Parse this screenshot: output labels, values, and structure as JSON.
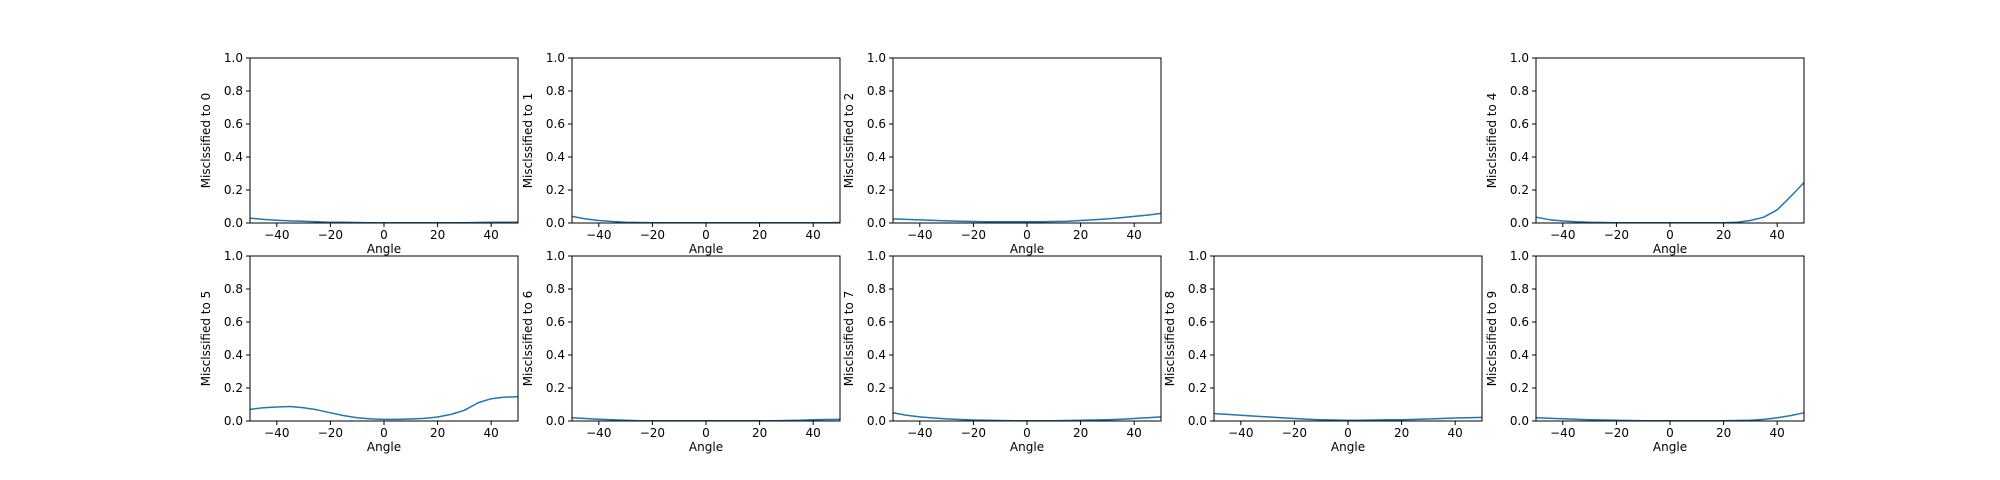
{
  "chart_data": [
    {
      "type": "line",
      "xlabel": "Angle",
      "ylabel": "Misclssified to 0",
      "xlim": [
        -50,
        50
      ],
      "ylim": [
        0,
        1
      ],
      "xticks": [
        -40,
        -20,
        0,
        20,
        40
      ],
      "yticks": [
        0.0,
        0.2,
        0.4,
        0.6,
        0.8,
        1.0
      ],
      "series": [
        {
          "x": [
            -50,
            -45,
            -40,
            -35,
            -30,
            -25,
            -20,
            -15,
            -10,
            -5,
            0,
            5,
            10,
            15,
            20,
            25,
            30,
            35,
            40,
            45,
            50
          ],
          "y": [
            0.03,
            0.022,
            0.017,
            0.013,
            0.01,
            0.007,
            0.005,
            0.004,
            0.003,
            0.002,
            0.002,
            0.002,
            0.002,
            0.002,
            0.002,
            0.002,
            0.002,
            0.003,
            0.004,
            0.004,
            0.005
          ]
        }
      ]
    },
    {
      "type": "line",
      "xlabel": "Angle",
      "ylabel": "Misclssified to 1",
      "xlim": [
        -50,
        50
      ],
      "ylim": [
        0,
        1
      ],
      "xticks": [
        -40,
        -20,
        0,
        20,
        40
      ],
      "yticks": [
        0.0,
        0.2,
        0.4,
        0.6,
        0.8,
        1.0
      ],
      "series": [
        {
          "x": [
            -50,
            -45,
            -40,
            -35,
            -30,
            -25,
            -20,
            -15,
            -10,
            -5,
            0,
            5,
            10,
            15,
            20,
            25,
            30,
            35,
            40,
            45,
            50
          ],
          "y": [
            0.04,
            0.025,
            0.015,
            0.009,
            0.005,
            0.003,
            0.002,
            0.001,
            0.001,
            0.001,
            0.001,
            0.001,
            0.001,
            0.001,
            0.001,
            0.001,
            0.001,
            0.001,
            0.002,
            0.002,
            0.003
          ]
        }
      ]
    },
    {
      "type": "line",
      "xlabel": "Angle",
      "ylabel": "Misclssified to 2",
      "xlim": [
        -50,
        50
      ],
      "ylim": [
        0,
        1
      ],
      "xticks": [
        -40,
        -20,
        0,
        20,
        40
      ],
      "yticks": [
        0.0,
        0.2,
        0.4,
        0.6,
        0.8,
        1.0
      ],
      "series": [
        {
          "x": [
            -50,
            -45,
            -40,
            -35,
            -30,
            -25,
            -20,
            -15,
            -10,
            -5,
            0,
            5,
            10,
            15,
            20,
            25,
            30,
            35,
            40,
            45,
            50
          ],
          "y": [
            0.025,
            0.022,
            0.019,
            0.016,
            0.013,
            0.011,
            0.009,
            0.008,
            0.008,
            0.007,
            0.007,
            0.008,
            0.009,
            0.011,
            0.015,
            0.02,
            0.025,
            0.032,
            0.04,
            0.048,
            0.058
          ]
        }
      ]
    },
    {
      "type": "line",
      "xlabel": "Angle",
      "ylabel": "Misclssified to 4",
      "xlim": [
        -50,
        50
      ],
      "ylim": [
        0,
        1
      ],
      "xticks": [
        -40,
        -20,
        0,
        20,
        40
      ],
      "yticks": [
        0.0,
        0.2,
        0.4,
        0.6,
        0.8,
        1.0
      ],
      "series": [
        {
          "x": [
            -50,
            -45,
            -40,
            -35,
            -30,
            -25,
            -20,
            -15,
            -10,
            -5,
            0,
            5,
            10,
            15,
            20,
            25,
            30,
            35,
            40,
            45,
            50
          ],
          "y": [
            0.035,
            0.02,
            0.012,
            0.007,
            0.004,
            0.003,
            0.002,
            0.001,
            0.001,
            0.001,
            0.001,
            0.001,
            0.001,
            0.001,
            0.002,
            0.005,
            0.015,
            0.035,
            0.08,
            0.16,
            0.245
          ]
        }
      ]
    },
    {
      "type": "line",
      "xlabel": "Angle",
      "ylabel": "Misclssified to 5",
      "xlim": [
        -50,
        50
      ],
      "ylim": [
        0,
        1
      ],
      "xticks": [
        -40,
        -20,
        0,
        20,
        40
      ],
      "yticks": [
        0.0,
        0.2,
        0.4,
        0.6,
        0.8,
        1.0
      ],
      "series": [
        {
          "x": [
            -50,
            -45,
            -40,
            -35,
            -30,
            -25,
            -20,
            -15,
            -10,
            -5,
            0,
            5,
            10,
            15,
            20,
            25,
            30,
            35,
            40,
            45,
            50
          ],
          "y": [
            0.07,
            0.08,
            0.085,
            0.088,
            0.08,
            0.068,
            0.05,
            0.033,
            0.02,
            0.013,
            0.01,
            0.01,
            0.012,
            0.016,
            0.024,
            0.04,
            0.065,
            0.11,
            0.135,
            0.145,
            0.147
          ]
        }
      ]
    },
    {
      "type": "line",
      "xlabel": "Angle",
      "ylabel": "Misclssified to 6",
      "xlim": [
        -50,
        50
      ],
      "ylim": [
        0,
        1
      ],
      "xticks": [
        -40,
        -20,
        0,
        20,
        40
      ],
      "yticks": [
        0.0,
        0.2,
        0.4,
        0.6,
        0.8,
        1.0
      ],
      "series": [
        {
          "x": [
            -50,
            -45,
            -40,
            -35,
            -30,
            -25,
            -20,
            -15,
            -10,
            -5,
            0,
            5,
            10,
            15,
            20,
            25,
            30,
            35,
            40,
            45,
            50
          ],
          "y": [
            0.02,
            0.015,
            0.011,
            0.007,
            0.004,
            0.002,
            0.001,
            0.001,
            0.001,
            0.001,
            0.001,
            0.001,
            0.001,
            0.001,
            0.001,
            0.002,
            0.003,
            0.005,
            0.007,
            0.009,
            0.01
          ]
        }
      ]
    },
    {
      "type": "line",
      "xlabel": "Angle",
      "ylabel": "Misclssified to 7",
      "xlim": [
        -50,
        50
      ],
      "ylim": [
        0,
        1
      ],
      "xticks": [
        -40,
        -20,
        0,
        20,
        40
      ],
      "yticks": [
        0.0,
        0.2,
        0.4,
        0.6,
        0.8,
        1.0
      ],
      "series": [
        {
          "x": [
            -50,
            -45,
            -40,
            -35,
            -30,
            -25,
            -20,
            -15,
            -10,
            -5,
            0,
            5,
            10,
            15,
            20,
            25,
            30,
            35,
            40,
            45,
            50
          ],
          "y": [
            0.05,
            0.035,
            0.025,
            0.018,
            0.013,
            0.009,
            0.006,
            0.004,
            0.003,
            0.002,
            0.002,
            0.002,
            0.002,
            0.003,
            0.004,
            0.006,
            0.008,
            0.011,
            0.015,
            0.02,
            0.025
          ]
        }
      ]
    },
    {
      "type": "line",
      "xlabel": "Angle",
      "ylabel": "Misclssified to 8",
      "xlim": [
        -50,
        50
      ],
      "ylim": [
        0,
        1
      ],
      "xticks": [
        -40,
        -20,
        0,
        20,
        40
      ],
      "yticks": [
        0.0,
        0.2,
        0.4,
        0.6,
        0.8,
        1.0
      ],
      "series": [
        {
          "x": [
            -50,
            -45,
            -40,
            -35,
            -30,
            -25,
            -20,
            -15,
            -10,
            -5,
            0,
            5,
            10,
            15,
            20,
            25,
            30,
            35,
            40,
            45,
            50
          ],
          "y": [
            0.045,
            0.04,
            0.035,
            0.03,
            0.025,
            0.02,
            0.015,
            0.011,
            0.008,
            0.006,
            0.005,
            0.005,
            0.006,
            0.007,
            0.008,
            0.01,
            0.012,
            0.015,
            0.018,
            0.02,
            0.022
          ]
        }
      ]
    },
    {
      "type": "line",
      "xlabel": "Angle",
      "ylabel": "Misclssified to 9",
      "xlim": [
        -50,
        50
      ],
      "ylim": [
        0,
        1
      ],
      "xticks": [
        -40,
        -20,
        0,
        20,
        40
      ],
      "yticks": [
        0.0,
        0.2,
        0.4,
        0.6,
        0.8,
        1.0
      ],
      "series": [
        {
          "x": [
            -50,
            -45,
            -40,
            -35,
            -30,
            -25,
            -20,
            -15,
            -10,
            -5,
            0,
            5,
            10,
            15,
            20,
            25,
            30,
            35,
            40,
            45,
            50
          ],
          "y": [
            0.02,
            0.017,
            0.014,
            0.011,
            0.008,
            0.006,
            0.004,
            0.003,
            0.002,
            0.002,
            0.002,
            0.002,
            0.002,
            0.002,
            0.002,
            0.003,
            0.005,
            0.01,
            0.02,
            0.033,
            0.05
          ]
        }
      ]
    }
  ],
  "colors": {
    "line": "#1f77b4",
    "axes": "#000000",
    "background": "#ffffff"
  }
}
